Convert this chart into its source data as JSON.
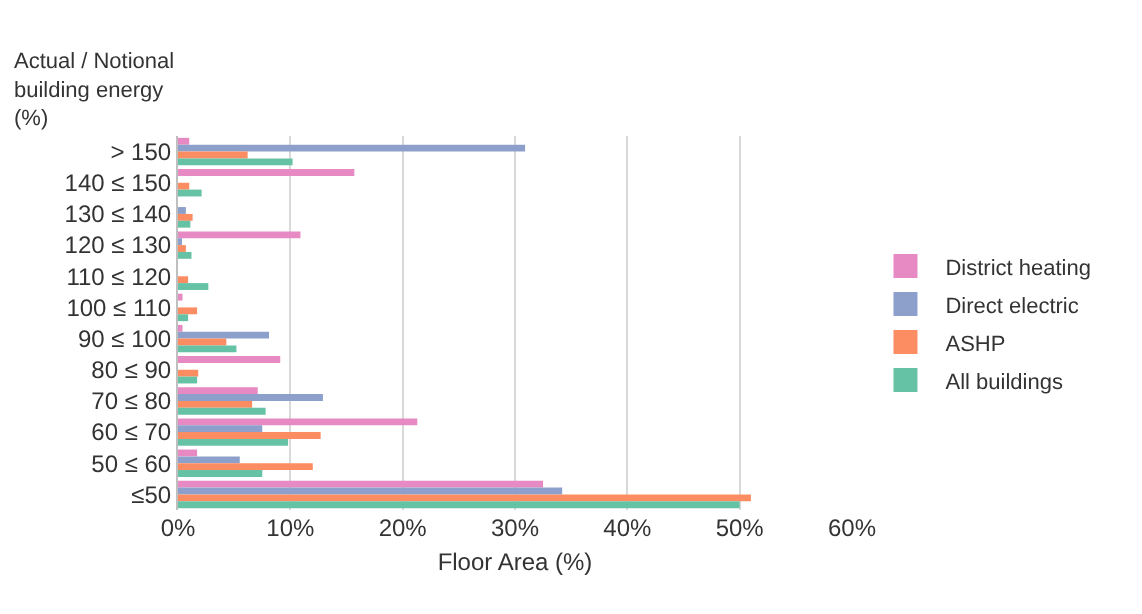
{
  "chart_data": {
    "type": "bar",
    "orientation": "horizontal",
    "xlabel": "Floor Area (%)",
    "ylabel": "Actual / Notional building energy (%)",
    "categories": [
      "> 150",
      "140 ≤ 150",
      "130 ≤ 140",
      "120 ≤ 130",
      "110 ≤ 120",
      "100 ≤ 110",
      "90 ≤ 100",
      "80 ≤ 90",
      "70 ≤ 80",
      "60 ≤ 70",
      "50 ≤ 60",
      "≤50"
    ],
    "series": [
      {
        "name": "District heating",
        "color": "#e78ac3",
        "values": [
          1.0,
          15.7,
          0,
          10.9,
          0,
          0.4,
          0.4,
          9.1,
          7.1,
          21.3,
          1.7,
          32.5
        ]
      },
      {
        "name": "Direct electric",
        "color": "#8da0cb",
        "values": [
          30.9,
          0,
          0.7,
          0.2,
          0,
          0,
          8.1,
          0,
          12.9,
          7.5,
          5.5,
          34.2
        ]
      },
      {
        "name": "ASHP",
        "color": "#fc8d62",
        "values": [
          6.2,
          1.0,
          1.3,
          0.7,
          0.9,
          1.7,
          4.3,
          1.8,
          6.6,
          12.7,
          12.0,
          51.0
        ]
      },
      {
        "name": "All buildings",
        "color": "#66c2a5",
        "values": [
          10.2,
          2.1,
          1.1,
          1.2,
          2.7,
          0.9,
          5.2,
          1.7,
          7.8,
          9.8,
          7.5,
          50.0
        ]
      }
    ],
    "xlim": [
      0,
      60
    ],
    "xticks": [
      {
        "value": 0,
        "label": "0%"
      },
      {
        "value": 10,
        "label": "10%"
      },
      {
        "value": 20,
        "label": "20%"
      },
      {
        "value": 30,
        "label": "30%"
      },
      {
        "value": 40,
        "label": "40%"
      },
      {
        "value": 50,
        "label": "50%"
      },
      {
        "value": 60,
        "label": "60%"
      }
    ],
    "grid": "x",
    "legend": "right"
  }
}
